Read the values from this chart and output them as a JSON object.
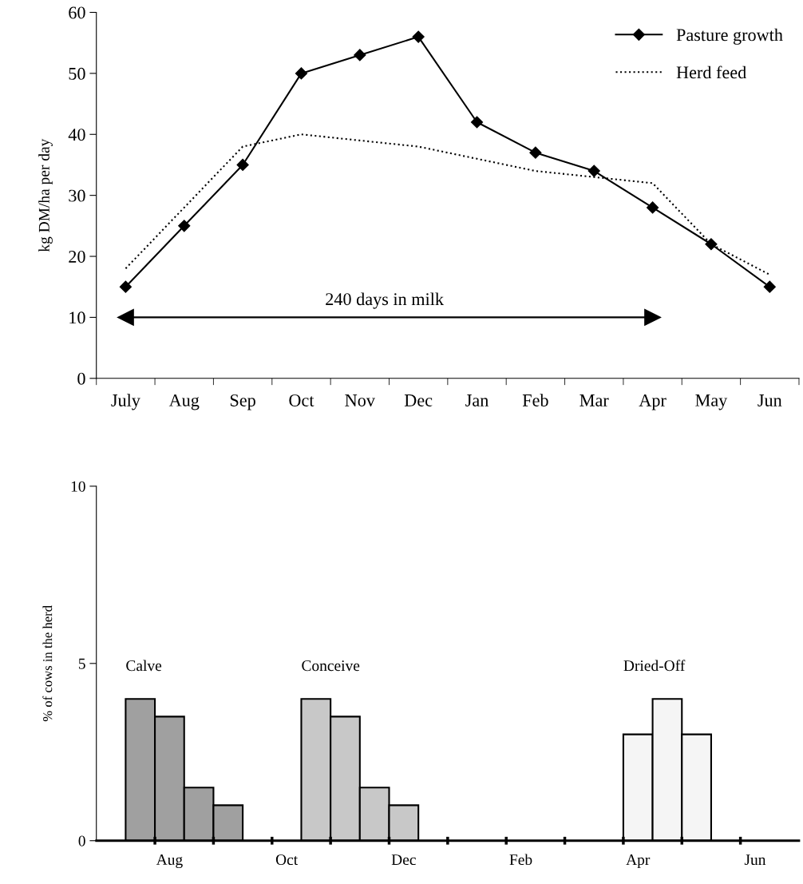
{
  "chart_data": [
    {
      "type": "line",
      "ylabel": "kg DM/ha per day",
      "categories": [
        "July",
        "Aug",
        "Sep",
        "Oct",
        "Nov",
        "Dec",
        "Jan",
        "Feb",
        "Mar",
        "Apr",
        "May",
        "Jun"
      ],
      "series": [
        {
          "name": "Pasture growth",
          "color": "#000000",
          "marker": "diamond",
          "line_style": "solid",
          "values": [
            15,
            25,
            35,
            50,
            53,
            56,
            42,
            37,
            34,
            28,
            22,
            15
          ]
        },
        {
          "name": "Herd feed",
          "color": "#000000",
          "marker": "none",
          "line_style": "dotted",
          "values": [
            18,
            28,
            38,
            40,
            39,
            38,
            36,
            34,
            33,
            32,
            22,
            17
          ]
        },
        {
          "color": "#000000",
          "marker": "triangle",
          "line_style": "solid",
          "values": [
            10,
            null,
            null,
            null,
            null,
            null,
            null,
            null,
            null,
            10,
            null,
            null
          ]
        }
      ],
      "annotations": [
        "240 days in milk"
      ],
      "ylim": [
        0,
        60
      ],
      "yticks": [
        0,
        10,
        20,
        30,
        40,
        50,
        60
      ],
      "legend": "top right"
    },
    {
      "type": "bar",
      "ylabel": "% of cows in the herd",
      "categories": [
        null,
        null,
        "Aug",
        null,
        null,
        null,
        "Oct",
        null,
        null,
        null,
        "Dec",
        null,
        null,
        null,
        "Feb",
        null,
        null,
        null,
        "Apr",
        null,
        null,
        null,
        "Jun",
        null
      ],
      "series": [
        {
          "name": "Calve",
          "color": "#a0a0a0",
          "values": [
            null,
            4,
            3.5,
            1.5,
            1,
            null,
            null,
            null,
            null,
            null,
            null,
            null,
            null,
            null,
            null,
            null,
            null,
            null,
            null,
            null,
            null,
            null,
            null,
            null
          ]
        },
        {
          "name": "Conceive",
          "color": "#c8c8c8",
          "values": [
            null,
            null,
            null,
            null,
            null,
            null,
            null,
            4,
            3.5,
            1.5,
            1,
            null,
            null,
            null,
            null,
            null,
            null,
            null,
            null,
            null,
            null,
            null,
            null,
            null
          ]
        },
        {
          "name": "Dried-Off",
          "color": "#f5f5f5",
          "values": [
            null,
            null,
            null,
            null,
            null,
            null,
            null,
            null,
            null,
            null,
            null,
            null,
            null,
            null,
            null,
            null,
            null,
            null,
            3,
            4,
            3,
            null,
            null,
            null
          ]
        }
      ],
      "ylim": [
        0,
        10
      ],
      "yticks": [
        0,
        5,
        10
      ]
    }
  ]
}
